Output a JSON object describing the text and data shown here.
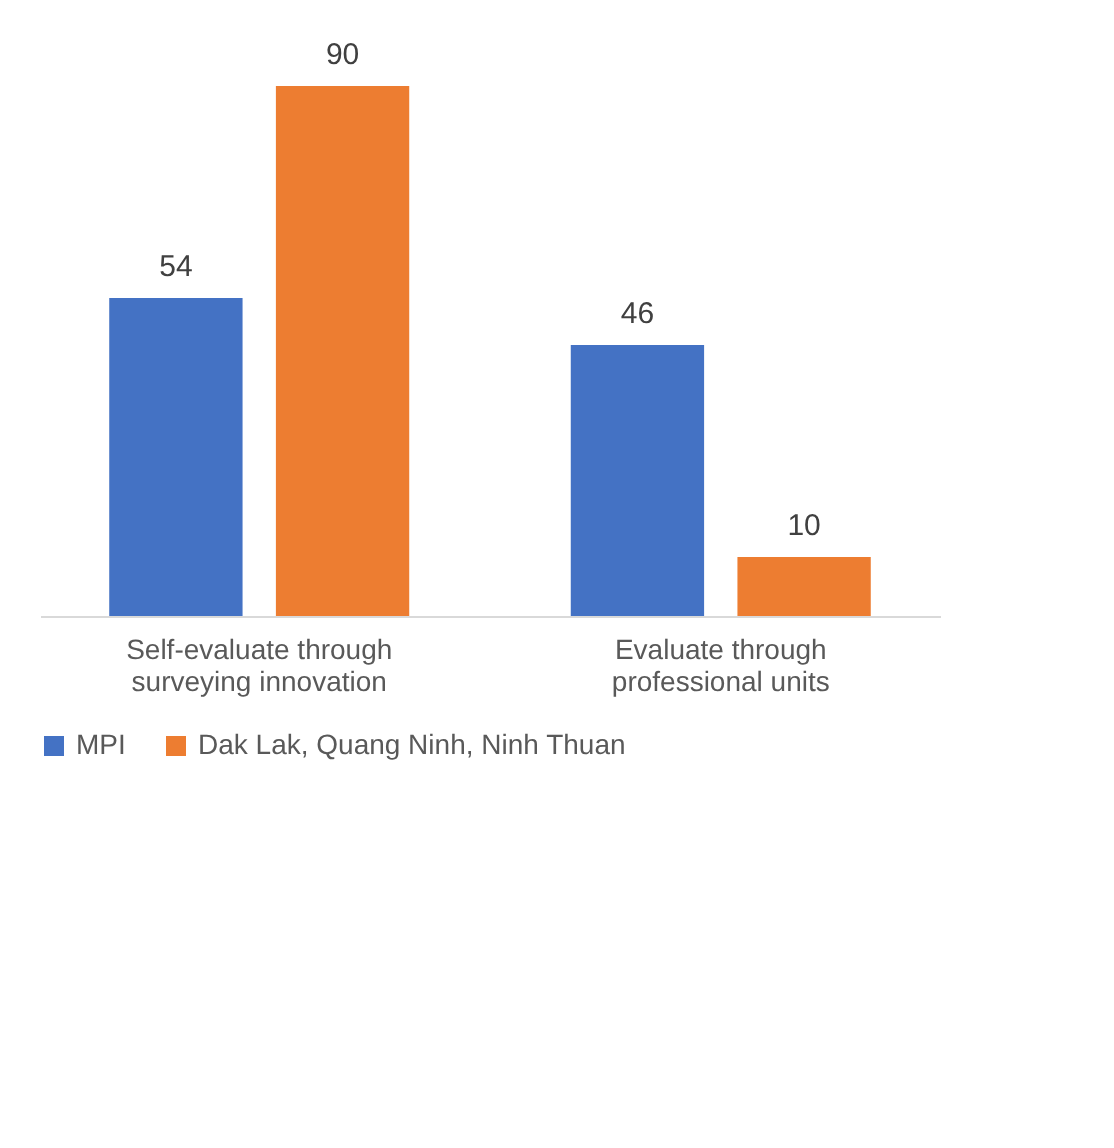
{
  "chart_data": {
    "type": "bar",
    "categories": [
      "Self-evaluate through surveying innovation",
      "Evaluate through professional units"
    ],
    "series": [
      {
        "name": "MPI",
        "color": "#4472c4",
        "values": [
          54,
          46
        ]
      },
      {
        "name": "Dak Lak, Quang Ninh, Ninh Thuan",
        "color": "#ed7d31",
        "values": [
          90,
          10
        ]
      }
    ],
    "data_labels": true,
    "legend": "bottom",
    "grid": false
  }
}
